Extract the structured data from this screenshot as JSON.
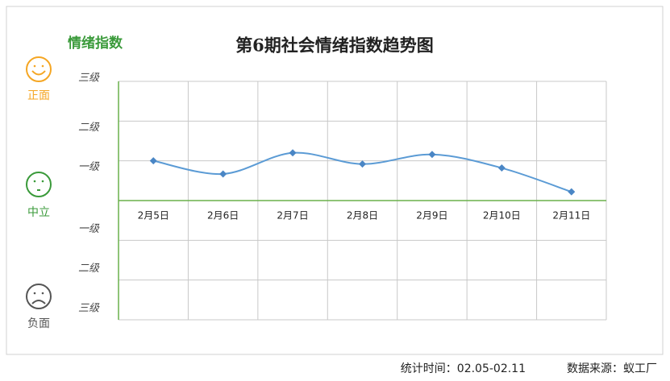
{
  "chart_data": {
    "type": "line",
    "title": "第6期社会情绪指数趋势图",
    "y_title": "情绪指数",
    "sentiment_labels": [
      "正面",
      "中立",
      "负面"
    ],
    "categories": [
      "2月5日",
      "2月6日",
      "2月7日",
      "2月8日",
      "2月9日",
      "2月10日",
      "2月11日"
    ],
    "series": [
      {
        "name": "情绪指数",
        "color": "#5b9bd5",
        "values": [
          1.0,
          0.67,
          1.2,
          0.92,
          1.16,
          0.82,
          0.22
        ]
      }
    ],
    "ylim": [
      -3,
      3
    ],
    "yticks": [
      {
        "value": 3,
        "label": "三级"
      },
      {
        "value": 2,
        "label": "二级"
      },
      {
        "value": 1,
        "label": "一级"
      },
      {
        "value": -1,
        "label": "一级"
      },
      {
        "value": -2,
        "label": "二级"
      },
      {
        "value": -3,
        "label": "三级"
      }
    ],
    "grid": true,
    "footer": [
      "统计时间：02.05-02.11",
      "数据来源：蚁工厂"
    ]
  }
}
